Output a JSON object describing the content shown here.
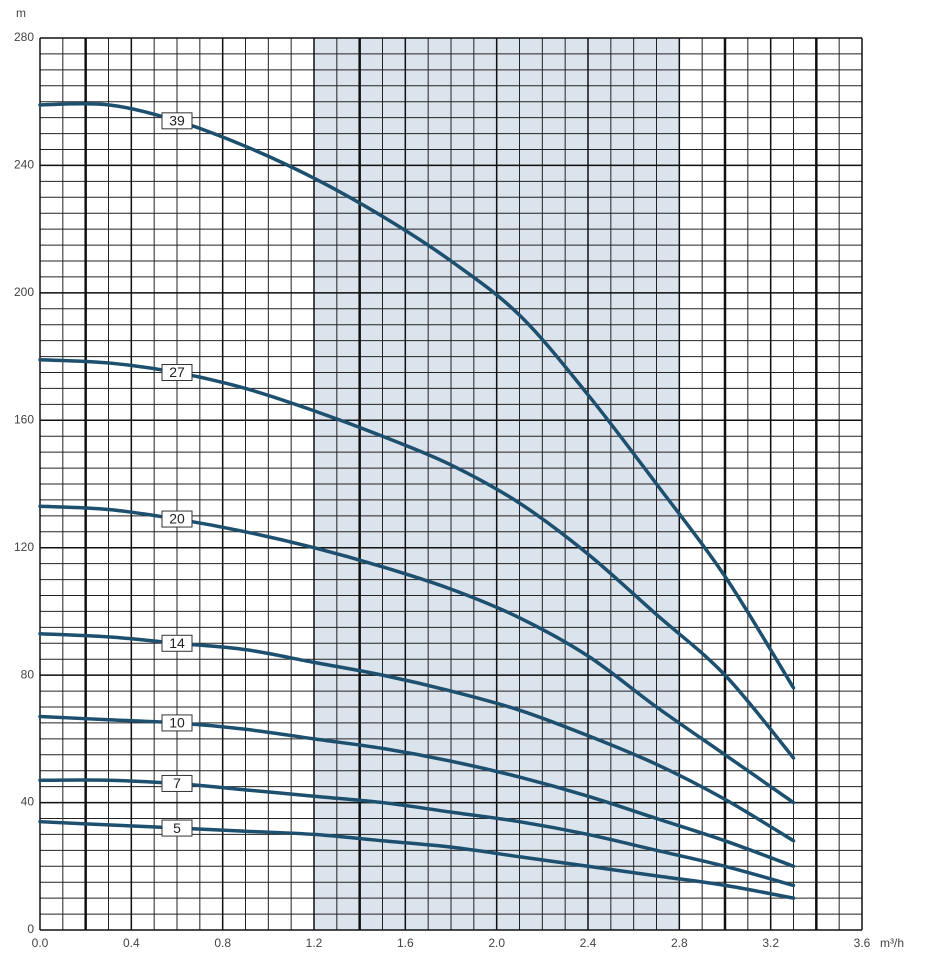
{
  "chart_data": {
    "type": "line",
    "y_label": "m",
    "x_label": "m³/h",
    "x": [
      0,
      0.3,
      0.6,
      0.9,
      1.2,
      1.5,
      1.8,
      2.1,
      2.4,
      2.7,
      3.0,
      3.3
    ],
    "series": [
      {
        "name": "39",
        "color": "#1d4f6e",
        "values": [
          259,
          259,
          254,
          246,
          236,
          224,
          210,
          193,
          168,
          140,
          111,
          76
        ]
      },
      {
        "name": "27",
        "color": "#1d4f6e",
        "values": [
          179,
          178,
          175,
          170,
          163,
          155,
          146,
          134,
          118,
          99,
          80,
          54
        ]
      },
      {
        "name": "20",
        "color": "#1d4f6e",
        "values": [
          133,
          132,
          129,
          125,
          120,
          114,
          107,
          98,
          86,
          70,
          55,
          40
        ]
      },
      {
        "name": "14",
        "color": "#1d4f6e",
        "values": [
          93,
          92,
          90,
          88,
          84,
          80,
          75,
          69,
          61,
          52,
          41,
          28
        ]
      },
      {
        "name": "10",
        "color": "#1d4f6e",
        "values": [
          67,
          66,
          65,
          63,
          60,
          57,
          53,
          48,
          42,
          35,
          28,
          20
        ]
      },
      {
        "name": "7",
        "color": "#1d4f6e",
        "values": [
          47,
          47,
          46,
          44,
          42,
          40,
          37,
          34,
          30,
          25,
          20,
          14
        ]
      },
      {
        "name": "5",
        "color": "#1d4f6e",
        "values": [
          34,
          33,
          32,
          31,
          30,
          28,
          26,
          23,
          20,
          17,
          14,
          10
        ]
      }
    ],
    "label_x": 0.6,
    "xlim": [
      0,
      3.6
    ],
    "ylim": [
      0,
      280
    ],
    "xticks": [
      {
        "value": 0,
        "label": "0.0"
      },
      0.4,
      0.8,
      1.2,
      1.6,
      {
        "value": 2,
        "label": "2.0"
      },
      2.4,
      2.8,
      3.2,
      3.6
    ],
    "yticks": [
      0,
      40,
      80,
      120,
      160,
      200,
      240,
      280
    ],
    "grid": true,
    "minor_grid_step": {
      "x": 0.1,
      "y": 5
    },
    "heavy_x_lines": [
      0.2,
      1.4,
      3.0,
      3.4
    ],
    "shaded_region": {
      "x": [
        1.2,
        2.8
      ],
      "color": "#dbe3ec"
    }
  }
}
